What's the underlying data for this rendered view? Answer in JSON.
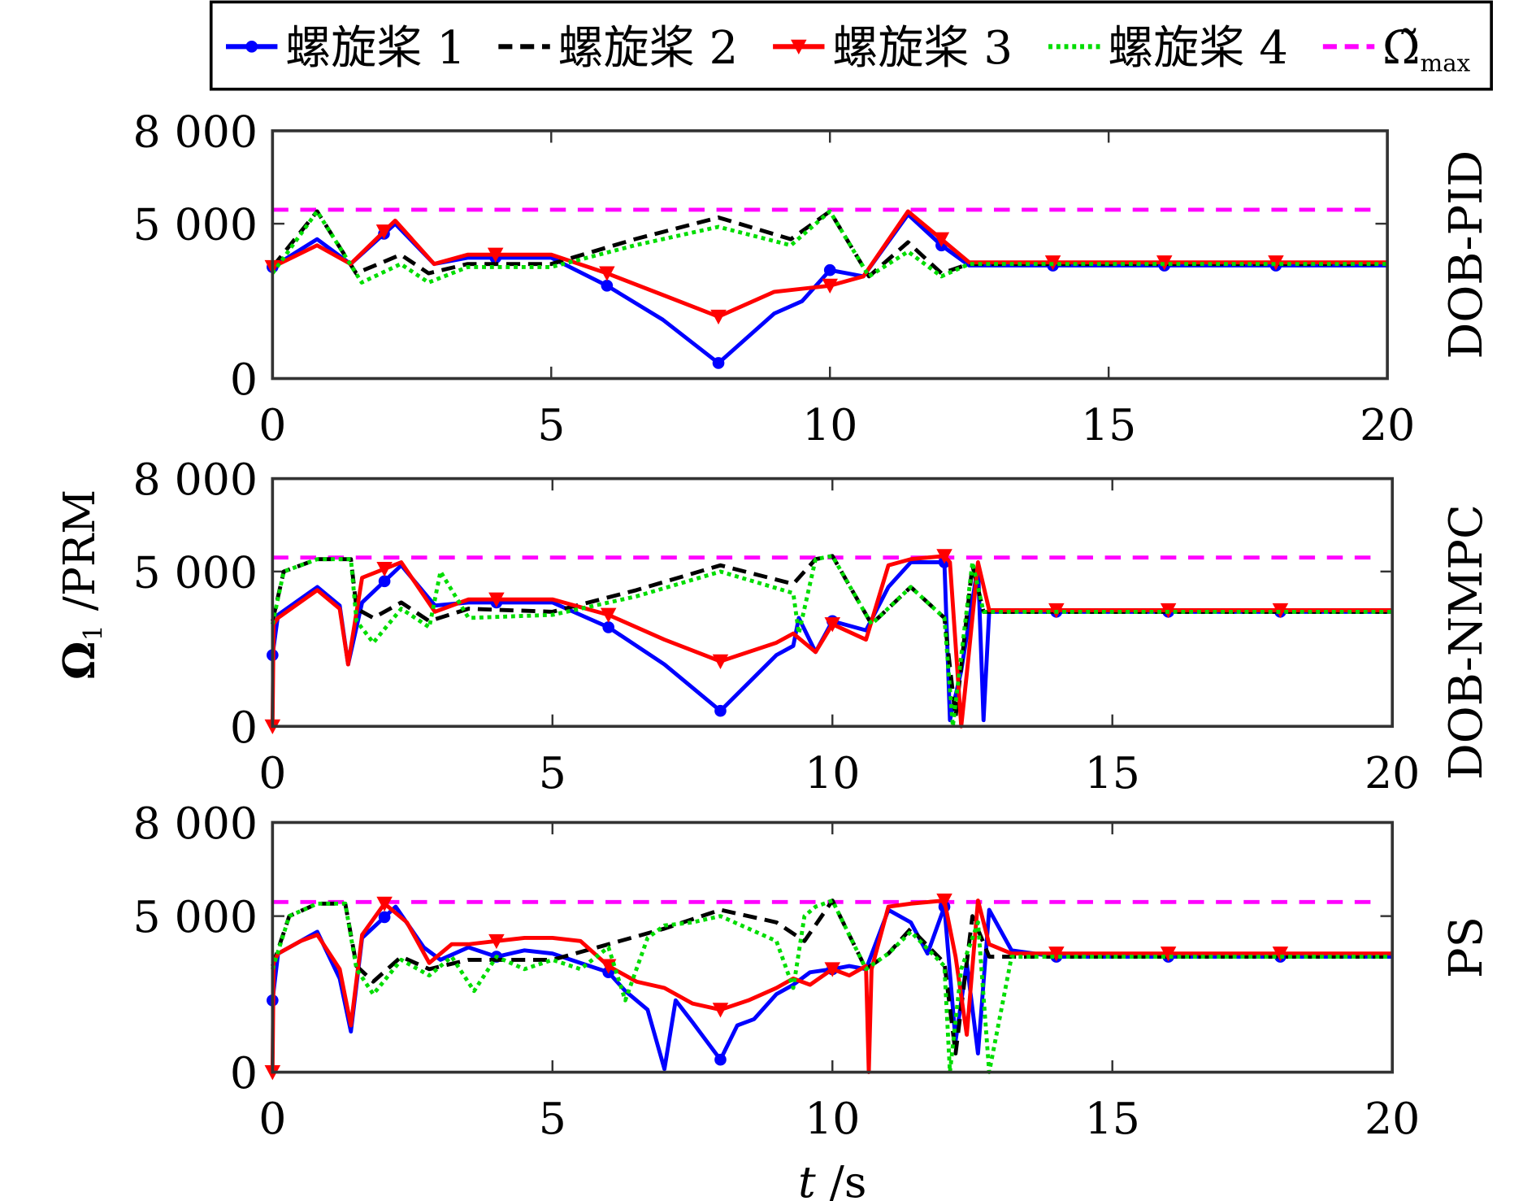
{
  "chart_data": {
    "type": "line",
    "legend": {
      "placement": "top",
      "entries": [
        {
          "label": "螺旋桨 1",
          "color": "#0000ff",
          "style": "solid",
          "marker": "circle"
        },
        {
          "label": "螺旋桨 2",
          "color": "#000000",
          "style": "dashed",
          "marker": "none"
        },
        {
          "label": "螺旋桨 3",
          "color": "#ff0000",
          "style": "solid",
          "marker": "triangle-down"
        },
        {
          "label": "螺旋桨 4",
          "color": "#00dd00",
          "style": "dotted",
          "marker": "none"
        },
        {
          "label": "Ω̃",
          "sub": "max",
          "color": "#ff00ff",
          "style": "dashed",
          "marker": "none"
        }
      ]
    },
    "ylabel": "Ω",
    "ylabel_sub": "1",
    "ylabel_unit": " /PRM",
    "xlabel": "t",
    "xlabel_unit": " /s",
    "xlim": [
      0,
      20
    ],
    "ylim": [
      0,
      8000
    ],
    "xticks": [
      "0",
      "5",
      "10",
      "15",
      "20"
    ],
    "xtick_values": [
      0,
      5,
      10,
      15,
      20
    ],
    "yticks": [
      "0",
      "5 000",
      "8 000"
    ],
    "ytick_values": [
      0,
      5000,
      8000
    ],
    "omega_max": 5450,
    "panels": [
      {
        "title": "DOB-PID",
        "series": [
          {
            "name": "螺旋桨 1",
            "x": [
              0,
              0.8,
              1.4,
              2.2,
              2.9,
              3.5,
              5,
              6,
              7,
              8,
              9,
              9.5,
              10,
              10.6,
              11.4,
              12,
              12.5,
              20
            ],
            "y": [
              3600,
              4500,
              3700,
              5000,
              3700,
              3900,
              3900,
              3000,
              1900,
              500,
              2100,
              2500,
              3500,
              3300,
              5300,
              4300,
              3650,
              3650
            ]
          },
          {
            "name": "螺旋桨 2",
            "x": [
              0,
              0.8,
              1.5,
              2.3,
              2.8,
              3.5,
              5,
              6.5,
              8,
              9.3,
              10,
              10.7,
              11.4,
              12,
              12.5,
              20
            ],
            "y": [
              3600,
              5400,
              3400,
              4000,
              3400,
              3700,
              3700,
              4500,
              5200,
              4500,
              5400,
              3300,
              4400,
              3400,
              3700,
              3700
            ]
          },
          {
            "name": "螺旋桨 3",
            "x": [
              0,
              0.8,
              1.4,
              2.2,
              2.9,
              3.5,
              5,
              6,
              7,
              8,
              9,
              9.5,
              10,
              10.6,
              11.4,
              12,
              12.5,
              20
            ],
            "y": [
              3600,
              4300,
              3700,
              5100,
              3700,
              4000,
              4000,
              3400,
              2700,
              2000,
              2800,
              2900,
              3000,
              3300,
              5400,
              4500,
              3750,
              3750
            ]
          },
          {
            "name": "螺旋桨 4",
            "x": [
              0,
              0.8,
              1.6,
              2.3,
              2.8,
              3.5,
              5,
              6.5,
              8,
              9.3,
              10,
              10.7,
              11.4,
              12,
              12.5,
              20
            ],
            "y": [
              3400,
              5400,
              3100,
              3700,
              3100,
              3600,
              3600,
              4300,
              4900,
              4300,
              5400,
              3300,
              4100,
              3300,
              3700,
              3700
            ]
          }
        ]
      },
      {
        "title": "DOB-NMPC",
        "series": [
          {
            "name": "螺旋桨 1",
            "x": [
              0,
              0.1,
              0.8,
              1.2,
              1.35,
              1.6,
              2.3,
              2.9,
              3.5,
              5,
              6,
              7,
              8,
              9,
              9.3,
              9.4,
              9.7,
              10,
              10.6,
              11,
              11.4,
              12,
              12.1,
              12.3,
              12.6,
              12.7,
              12.8,
              20
            ],
            "y": [
              2300,
              3600,
              4500,
              3900,
              2000,
              4000,
              5200,
              3900,
              4000,
              4000,
              3200,
              2000,
              500,
              2300,
              2600,
              3500,
              2400,
              3400,
              3100,
              4500,
              5300,
              5300,
              200,
              1800,
              5200,
              200,
              3700,
              3700
            ]
          },
          {
            "name": "螺旋桨 2",
            "x": [
              0,
              0.2,
              0.8,
              1.4,
              1.5,
              1.8,
              2.3,
              2.8,
              3.5,
              5,
              6.5,
              8,
              9.3,
              9.7,
              10,
              10.7,
              11.4,
              12,
              12.2,
              12.5,
              12.7,
              20
            ],
            "y": [
              3400,
              5000,
              5400,
              5400,
              3800,
              3500,
              4000,
              3400,
              3800,
              3700,
              4400,
              5200,
              4600,
              5400,
              5500,
              3300,
              4500,
              3500,
              300,
              5200,
              3700,
              3700
            ]
          },
          {
            "name": "螺旋桨 3",
            "x": [
              0,
              0.02,
              0.1,
              0.8,
              1.2,
              1.35,
              1.6,
              2.3,
              2.9,
              3.5,
              5,
              6,
              7,
              8,
              9,
              9.3,
              9.7,
              10,
              10.6,
              11,
              11.4,
              12,
              12.1,
              12.3,
              12.4,
              12.6,
              12.8,
              20
            ],
            "y": [
              0,
              3300,
              3500,
              4400,
              3800,
              2000,
              4800,
              5300,
              3700,
              4100,
              4100,
              3600,
              2800,
              2100,
              2700,
              3000,
              2400,
              3300,
              2800,
              5200,
              5400,
              5500,
              5300,
              0,
              1700,
              5300,
              3750,
              3750
            ]
          },
          {
            "name": "螺旋桨 4",
            "x": [
              0,
              0.2,
              0.8,
              1.4,
              1.5,
              1.8,
              2.3,
              2.8,
              3,
              3.5,
              5,
              6.5,
              8,
              9.3,
              9.4,
              9.7,
              10,
              10.7,
              11.4,
              12,
              12.15,
              12.5,
              12.7,
              20
            ],
            "y": [
              3300,
              5000,
              5400,
              5400,
              3400,
              2700,
              3800,
              3200,
              5000,
              3500,
              3600,
              4200,
              5000,
              4300,
              3000,
              5400,
              5500,
              3300,
              4500,
              3500,
              0,
              5300,
              3700,
              3700
            ]
          }
        ]
      },
      {
        "title": "PS",
        "series": [
          {
            "name": "螺旋桨 1",
            "x": [
              0,
              0.1,
              0.5,
              0.8,
              1.2,
              1.4,
              1.6,
              2.2,
              2.7,
              3,
              3.5,
              4,
              4.5,
              5,
              5.5,
              6,
              6.3,
              6.7,
              7,
              7.2,
              7.5,
              8,
              8.3,
              8.6,
              9,
              9.3,
              9.6,
              10,
              10.3,
              10.6,
              11,
              11.4,
              11.7,
              12,
              12.2,
              12.4,
              12.6,
              12.8,
              13.2,
              14,
              20
            ],
            "y": [
              2300,
              3800,
              4200,
              4500,
              3000,
              1300,
              4300,
              5300,
              4000,
              3600,
              4000,
              3700,
              3900,
              3800,
              3500,
              3200,
              2600,
              2000,
              100,
              2300,
              1600,
              400,
              1500,
              1700,
              2500,
              2800,
              3200,
              3300,
              3400,
              3300,
              5200,
              4800,
              3800,
              5300,
              1000,
              3500,
              600,
              5200,
              3900,
              3700,
              3700
            ]
          },
          {
            "name": "螺旋桨 2",
            "x": [
              0,
              0.3,
              0.8,
              1.3,
              1.5,
              1.8,
              2.3,
              2.8,
              3.5,
              4,
              5,
              6,
              7,
              8,
              9,
              9.5,
              10,
              10.6,
              11,
              11.4,
              12,
              12.2,
              12.5,
              12.8,
              13.2,
              20
            ],
            "y": [
              3400,
              5000,
              5400,
              5400,
              3400,
              2900,
              3700,
              3300,
              3600,
              3600,
              3600,
              4100,
              4600,
              5200,
              4800,
              4200,
              5500,
              3300,
              3800,
              4600,
              3500,
              600,
              5000,
              3700,
              3700,
              3700
            ]
          },
          {
            "name": "螺旋桨 3",
            "x": [
              0,
              0.02,
              0.1,
              0.5,
              0.8,
              1.2,
              1.4,
              1.6,
              2,
              2.4,
              2.8,
              3.2,
              3.5,
              4,
              4.5,
              5,
              5.5,
              6,
              6.5,
              7,
              7.5,
              8,
              8.5,
              9,
              9.3,
              9.6,
              10,
              10.3,
              10.6,
              10.65,
              10.7,
              11,
              11.4,
              12,
              12.2,
              12.4,
              12.6,
              12.8,
              13.2,
              20
            ],
            "y": [
              0,
              3500,
              3800,
              4200,
              4400,
              3300,
              1500,
              4400,
              5400,
              4800,
              3500,
              4100,
              4100,
              4200,
              4300,
              4300,
              4200,
              3400,
              2900,
              2700,
              2200,
              2000,
              2300,
              2700,
              3000,
              2800,
              3300,
              3100,
              3400,
              0,
              3300,
              5300,
              5400,
              5500,
              3700,
              1200,
              5500,
              4100,
              3800,
              3800
            ]
          },
          {
            "name": "螺旋桨 4",
            "x": [
              0,
              0.3,
              0.8,
              1.3,
              1.5,
              1.8,
              2.3,
              2.8,
              3.2,
              3.6,
              4,
              4.5,
              5,
              5.5,
              6,
              6.3,
              6.7,
              7,
              7.5,
              8,
              8.5,
              9,
              9.3,
              9.5,
              9.7,
              10,
              10.6,
              11,
              11.4,
              12,
              12.1,
              12.3,
              12.6,
              12.8,
              13.2,
              20
            ],
            "y": [
              3300,
              5000,
              5400,
              5400,
              3300,
              2500,
              3600,
              3100,
              3700,
              2600,
              3700,
              3300,
              3600,
              3300,
              4000,
              2300,
              4300,
              4700,
              4800,
              5000,
              4600,
              4200,
              2700,
              5000,
              5300,
              5500,
              3300,
              3800,
              4500,
              3400,
              0,
              3300,
              4800,
              0,
              3700,
              3700
            ]
          }
        ]
      }
    ]
  }
}
